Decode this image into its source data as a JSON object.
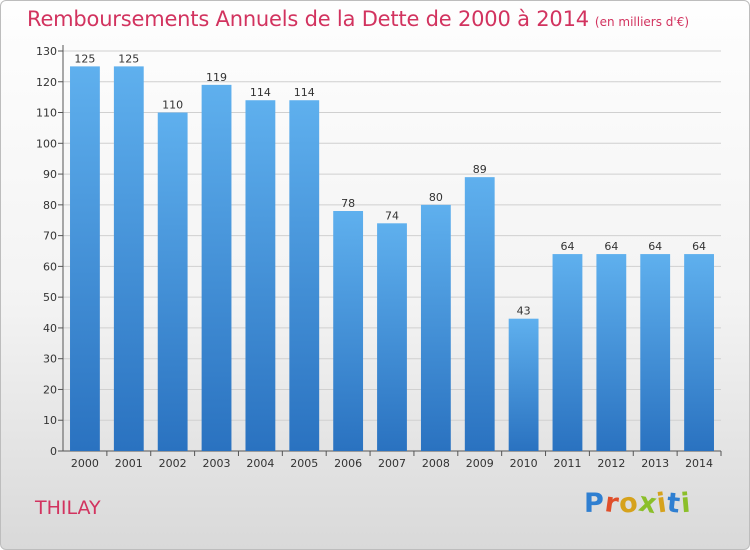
{
  "chart_data": {
    "type": "bar",
    "title": "Remboursements Annuels de la Dette de 2000 à 2014",
    "subtitle": "(en milliers d'€)",
    "categories": [
      "2000",
      "2001",
      "2002",
      "2003",
      "2004",
      "2005",
      "2006",
      "2007",
      "2008",
      "2009",
      "2010",
      "2011",
      "2012",
      "2013",
      "2014"
    ],
    "values": [
      125,
      125,
      110,
      119,
      114,
      114,
      78,
      74,
      80,
      89,
      43,
      64,
      64,
      64,
      64
    ],
    "ylim": [
      0,
      130
    ],
    "yticks": [
      0,
      10,
      20,
      30,
      40,
      50,
      60,
      70,
      80,
      90,
      100,
      110,
      120,
      130
    ],
    "grid": true,
    "bar_color": "#3d8edb"
  },
  "footer": {
    "town": "THILAY",
    "logo_text": "Proxiti"
  },
  "colors": {
    "title": "#d2335f",
    "bar_light": "#5aa9ea",
    "bar_dark": "#2a73c2"
  }
}
